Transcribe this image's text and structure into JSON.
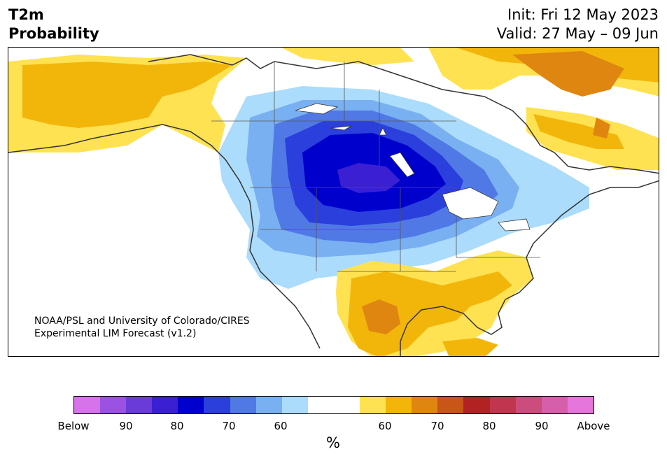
{
  "header": {
    "title_line1": "T2m",
    "title_line2": "Probability",
    "init": "Init: Fri 12 May 2023",
    "valid": "Valid: 27 May – 09 Jun"
  },
  "credit": {
    "line1": "NOAA/PSL and University of Colorado/CIRES",
    "line2": "Experimental LIM Forecast (v1.2)"
  },
  "colorbar": {
    "colors": [
      "#d672ea",
      "#9b52e3",
      "#6a3bd9",
      "#3a1fd3",
      "#0000cd",
      "#2a3fdc",
      "#5079e6",
      "#79b0f1",
      "#acdcfb",
      "#ffffff",
      "#ffffff",
      "#ffe252",
      "#f2b60b",
      "#df8611",
      "#c95519",
      "#b22222",
      "#c1354e",
      "#cc4d7d",
      "#d65fab",
      "#e577dc"
    ],
    "labels": [
      "Below",
      "90",
      "80",
      "70",
      "60",
      "60",
      "70",
      "80",
      "90",
      "Above"
    ],
    "unit": "%"
  }
}
